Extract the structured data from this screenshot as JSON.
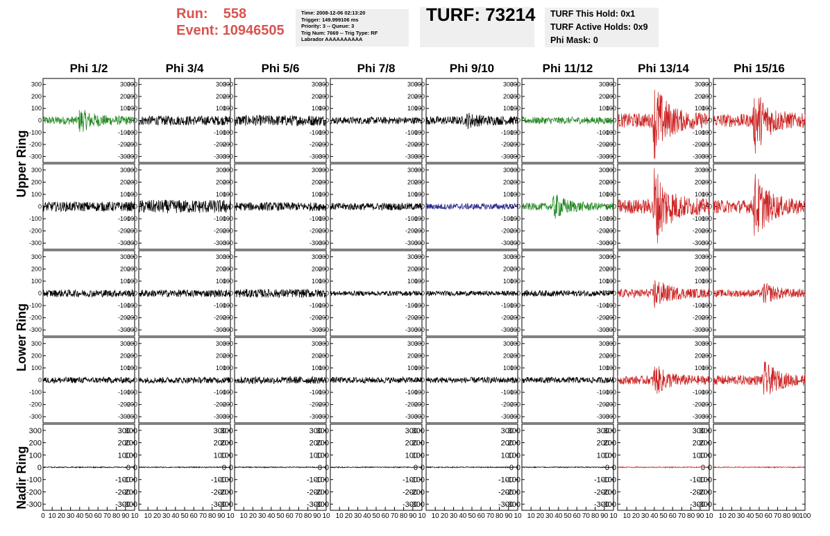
{
  "header": {
    "run_label": "Run:",
    "run_value": "558",
    "event_label": "Event:",
    "event_value": "10946505",
    "info_lines": [
      "Time: 2008-12-06 02:13:20",
      "Trigger: 149.999106 ms",
      "Priority: 3 -- Queue: 3",
      "Trig Num: 7669 -- Trig Type: RF",
      "Labrador AAAAAAAAAA"
    ],
    "turf_title": "TURF: 73214",
    "turf_lines": [
      "TURF This Hold: 0x1",
      "TURF Active Holds: 0x9",
      "Phi Mask: 0"
    ]
  },
  "colors": {
    "normal": "#000000",
    "triggered": "#cc2222",
    "l1": "#228822",
    "l2": "#222288",
    "accent_text": "#d9534f"
  },
  "chart_data": {
    "type": "line",
    "columns": [
      "Phi 1/2",
      "Phi 3/4",
      "Phi 5/6",
      "Phi 7/8",
      "Phi 9/10",
      "Phi 11/12",
      "Phi 13/14",
      "Phi 15/16"
    ],
    "ring_labels": [
      "Upper Ring",
      "Lower Ring",
      "Nadir Ring"
    ],
    "ylim": [
      -350,
      350
    ],
    "yticks": [
      "300",
      "200",
      "100",
      "0",
      "-100",
      "-200",
      "-300"
    ],
    "xlim": [
      0,
      100
    ],
    "xticks_first": [
      "0",
      "10",
      "20",
      "30",
      "40",
      "50",
      "60",
      "70",
      "80",
      "90",
      "10"
    ],
    "xticks_mid": [
      "10",
      "20",
      "30",
      "40",
      "50",
      "60",
      "70",
      "80",
      "90",
      "10"
    ],
    "xticks_last": [
      "10",
      "20",
      "30",
      "40",
      "50",
      "60",
      "70",
      "80",
      "90",
      "100"
    ],
    "rows": [
      {
        "ring": "Upper Ring",
        "colors": [
          "l1",
          "normal",
          "normal",
          "normal",
          "normal",
          "l1",
          "triggered",
          "triggered"
        ],
        "amplitudes": [
          35,
          40,
          45,
          30,
          35,
          30,
          60,
          55
        ],
        "pulses": [
          [
            40,
            80
          ],
          null,
          null,
          null,
          [
            45,
            40
          ],
          null,
          [
            40,
            290
          ],
          [
            45,
            250
          ]
        ]
      },
      {
        "ring": "Upper Ring",
        "colors": [
          "normal",
          "normal",
          "normal",
          "normal",
          "l2",
          "l1",
          "triggered",
          "triggered"
        ],
        "amplitudes": [
          40,
          55,
          35,
          30,
          25,
          30,
          60,
          55
        ],
        "pulses": [
          null,
          null,
          null,
          null,
          null,
          [
            35,
            90
          ],
          [
            40,
            310
          ],
          [
            45,
            250
          ]
        ]
      },
      {
        "ring": "Lower Ring",
        "colors": [
          "normal",
          "normal",
          "normal",
          "normal",
          "normal",
          "normal",
          "triggered",
          "triggered"
        ],
        "amplitudes": [
          30,
          30,
          35,
          20,
          20,
          25,
          35,
          30
        ],
        "pulses": [
          null,
          null,
          null,
          null,
          null,
          null,
          [
            40,
            110
          ],
          [
            55,
            70
          ]
        ]
      },
      {
        "ring": "Lower Ring",
        "colors": [
          "normal",
          "normal",
          "normal",
          "normal",
          "normal",
          "normal",
          "triggered",
          "triggered"
        ],
        "amplitudes": [
          25,
          25,
          30,
          25,
          25,
          25,
          35,
          40
        ],
        "pulses": [
          null,
          null,
          null,
          null,
          null,
          null,
          [
            40,
            110
          ],
          [
            55,
            130
          ]
        ]
      },
      {
        "ring": "Nadir Ring",
        "colors": [
          "normal",
          "normal",
          "normal",
          "normal",
          "normal",
          "normal",
          "triggered",
          "triggered"
        ],
        "amplitudes": [
          4,
          4,
          4,
          4,
          4,
          4,
          4,
          4
        ],
        "pulses": [
          null,
          null,
          null,
          null,
          null,
          null,
          null,
          null
        ]
      }
    ]
  }
}
